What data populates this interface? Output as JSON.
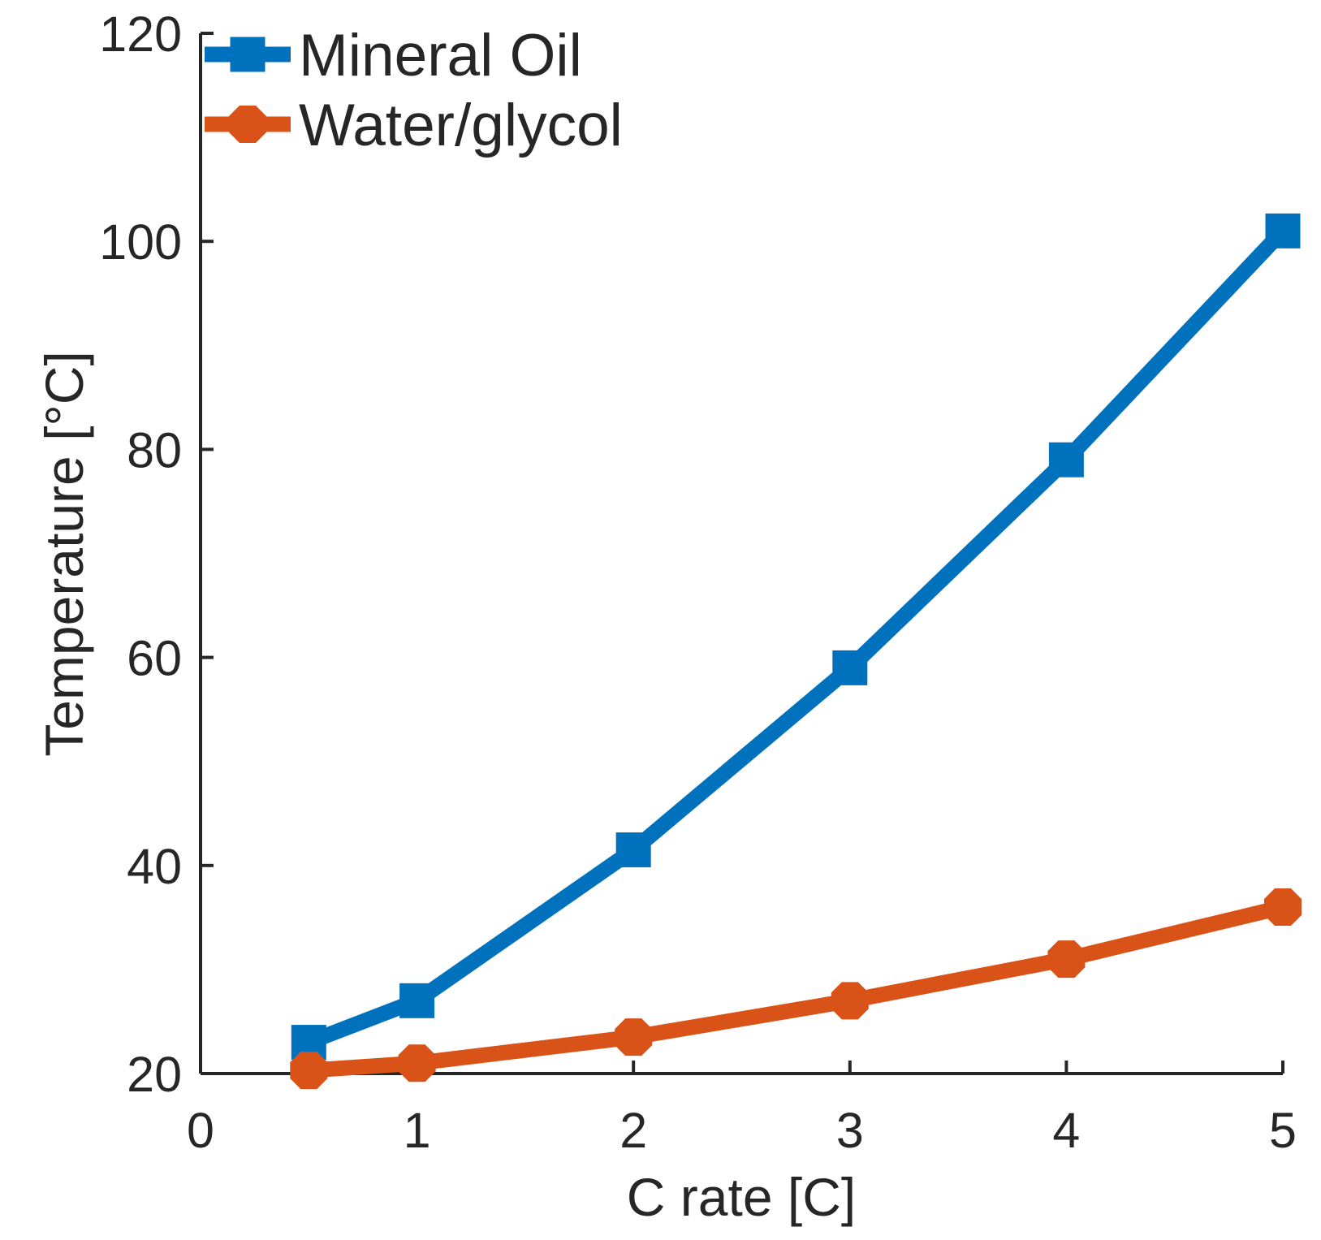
{
  "chart_data": {
    "type": "line",
    "title": "",
    "xlabel": "C rate [C]",
    "ylabel": "Temperature [°C]",
    "xlim": [
      0,
      5
    ],
    "ylim": [
      20,
      120
    ],
    "x_ticks": [
      "0",
      "1",
      "2",
      "3",
      "4",
      "5"
    ],
    "x_tick_values": [
      0,
      1,
      2,
      3,
      4,
      5
    ],
    "y_ticks": [
      "20",
      "40",
      "60",
      "80",
      "100",
      "120"
    ],
    "y_tick_values": [
      20,
      40,
      60,
      80,
      100,
      120
    ],
    "grid": false,
    "box": false,
    "legend_position": "top-left-inside",
    "axis_color": "#262626",
    "background_color": "#ffffff",
    "x": [
      0.5,
      1,
      2,
      3,
      4,
      5
    ],
    "series": [
      {
        "name": "Mineral Oil",
        "color": "#0072BD",
        "marker": "square",
        "values": [
          23,
          27,
          41.5,
          59,
          79,
          101
        ]
      },
      {
        "name": "Water/glycol",
        "color": "#D95319",
        "marker": "diamond",
        "values": [
          20.3,
          21,
          23.5,
          27,
          31,
          36
        ]
      }
    ]
  }
}
